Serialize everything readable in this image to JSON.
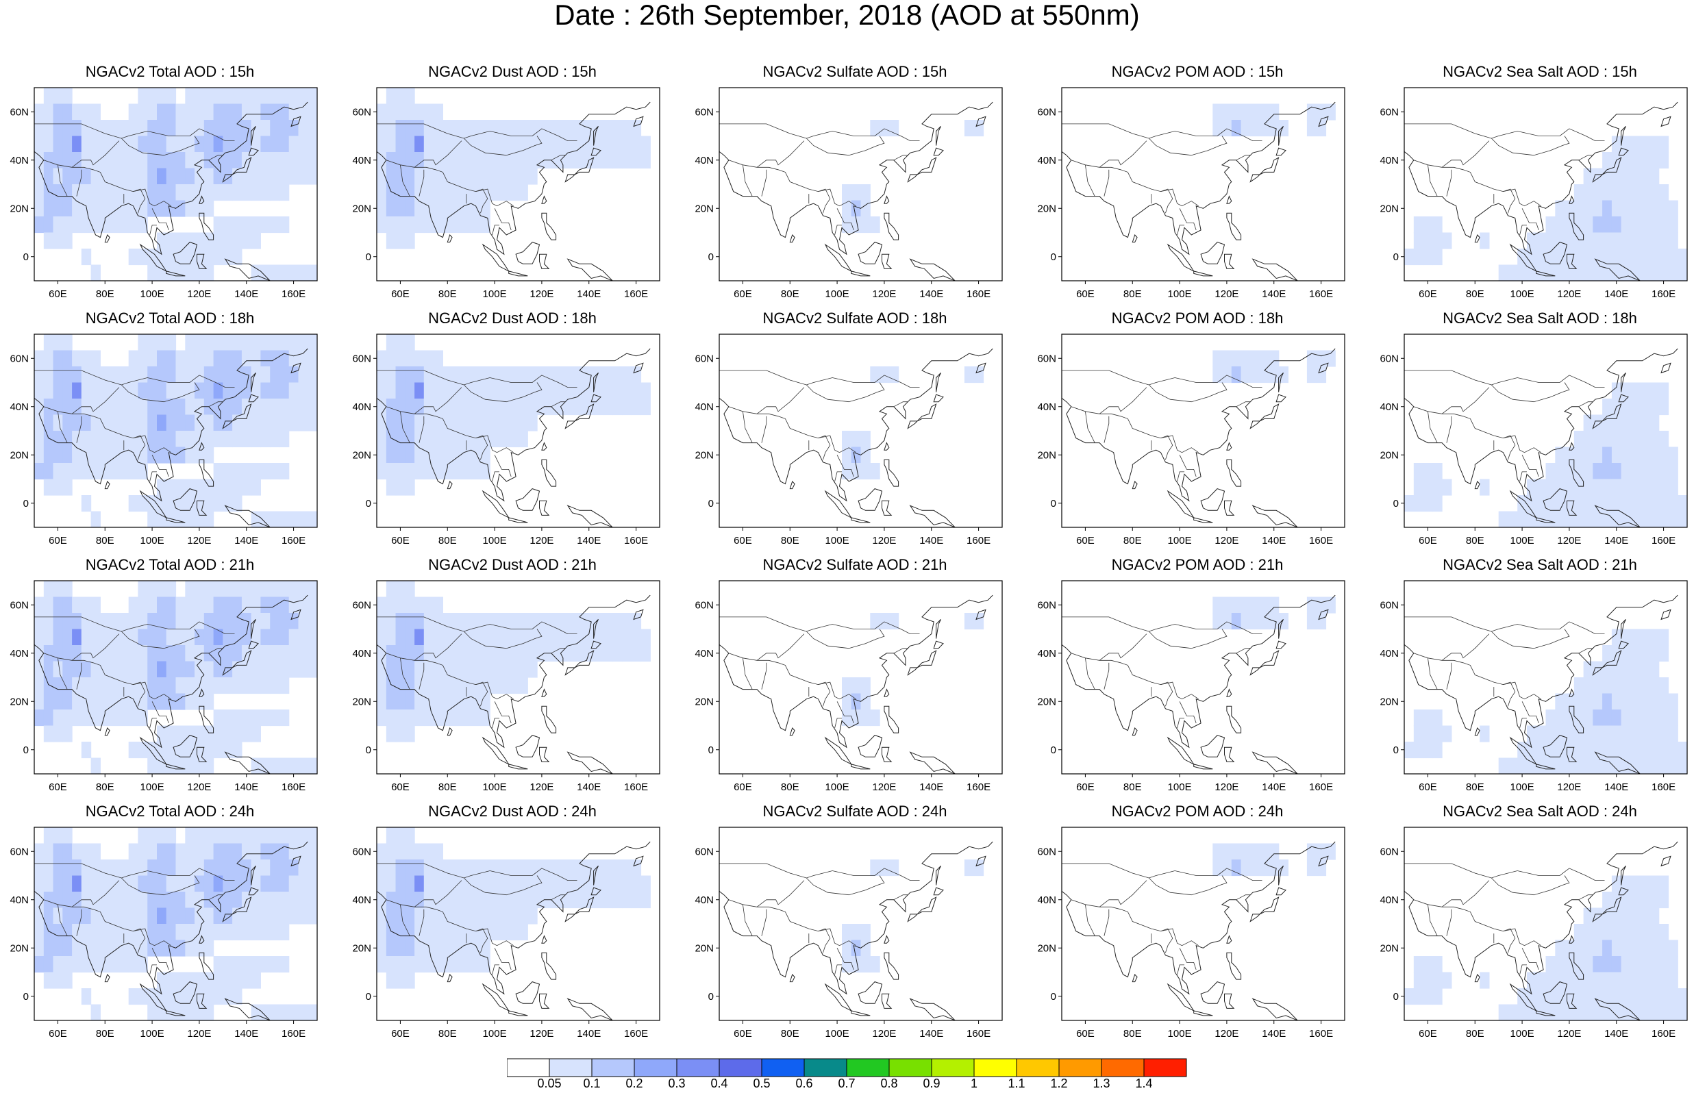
{
  "title": "Date : 26th September, 2018 (AOD at 550nm)",
  "axes": {
    "y_ticks": [
      "60N",
      "40N",
      "20N",
      "0"
    ],
    "x_ticks": [
      "60E",
      "80E",
      "100E",
      "120E",
      "140E",
      "160E"
    ]
  },
  "rows": [
    {
      "hour": "15h",
      "titles": [
        "NGACv2 Total AOD : 15h",
        "NGACv2 Dust AOD : 15h",
        "NGACv2 Sulfate AOD : 15h",
        "NGACv2 POM AOD : 15h",
        "NGACv2 Sea Salt AOD : 15h"
      ]
    },
    {
      "hour": "18h",
      "titles": [
        "NGACv2 Total AOD : 18h",
        "NGACv2 Dust AOD : 18h",
        "NGACv2 Sulfate AOD : 18h",
        "NGACv2 POM AOD : 18h",
        "NGACv2 Sea Salt AOD : 18h"
      ]
    },
    {
      "hour": "21h",
      "titles": [
        "NGACv2 Total AOD : 21h",
        "NGACv2 Dust AOD : 21h",
        "NGACv2 Sulfate AOD : 21h",
        "NGACv2 POM AOD : 21h",
        "NGACv2 Sea Salt AOD : 21h"
      ]
    },
    {
      "hour": "24h",
      "titles": [
        "NGACv2 Total AOD : 24h",
        "NGACv2 Dust AOD : 24h",
        "NGACv2 Sulfate AOD : 24h",
        "NGACv2 POM AOD : 24h",
        "NGACv2 Sea Salt  AOD : 24h"
      ]
    }
  ],
  "colorbar": {
    "labels": [
      "0.05",
      "0.1",
      "0.2",
      "0.3",
      "0.4",
      "0.5",
      "0.6",
      "0.7",
      "0.8",
      "0.9",
      "1",
      "1.1",
      "1.2",
      "1.3",
      "1.4"
    ],
    "colors": [
      "#ffffff",
      "#d7e3fd",
      "#b5c8fc",
      "#8fa8fa",
      "#7b8ff5",
      "#5d6bea",
      "#1060f2",
      "#088a8a",
      "#22c822",
      "#78e000",
      "#b4f000",
      "#ffff00",
      "#ffc800",
      "#ff9a00",
      "#ff6a00",
      "#ff1f00"
    ]
  },
  "fields": {
    "total": [
      "011100000001111011111111111111",
      "112211100011122111122211222111",
      "112221111111222111222221122211",
      "112241111112221112232221222111",
      "122221111111222211222211111111",
      "121222111111232221122111111111",
      "122211111111222111111111111000",
      "122211111111222211100000000000",
      "221111111111000000011111111000",
      "011100000000011111111111000000",
      "000001000011111111111100000000",
      "000000100000111111100001111111"
    ],
    "dust": [
      "011100000000000000000000000000",
      "111111100000000000000000000000",
      "112221111111111111111111111100",
      "112241111111111111111111111110",
      "122221111111111111111111111110",
      "122211111111111110000000000000",
      "122211111111111100000000000000",
      "122211111111000000000000000000",
      "111111111111000000000000000000",
      "011100000000000000000000000000",
      "000000000000000000000000000000",
      "000000000000000000000000000000"
    ],
    "sulfate": [
      "000000000000000000000000000000",
      "000000000000000000000000000000",
      "000000000000000011100000001100",
      "000000000000000000000000000000",
      "000000000000000000000000000000",
      "000000000000000000000000000000",
      "000000000000011100000000000000",
      "000000000000012100000000000000",
      "000000000000011110000000000000",
      "000000000000000000000000000000",
      "000000000000000000000000000000",
      "000000000000000000000000000000"
    ],
    "pom": [
      "000000000000000000000000000000",
      "000000000000000011111110001110",
      "000000000000000011211111001100",
      "000000000000000000000000000000",
      "000000000000000000000000000000",
      "000000000000000000000000000000",
      "000000000000000000000000000000",
      "000000000000000000000000000000",
      "000000000000000000000000000000",
      "000000000000000000000000000000",
      "000000000000000000000000000000",
      "000000000000000000000000000000"
    ],
    "seasalt": [
      "000000000000000000000000000000",
      "000000000000000000000000000000",
      "000000000000000000000000000000",
      "000000000000000000000011111100",
      "000000000000000000000111111100",
      "000000000000000000011111111000",
      "000000000000000000111111111100",
      "000000000000000011111211111110",
      "011100000000000111112221111110",
      "011110001000011111111111111110",
      "111100000000111111111111111111",
      "000000000011111111111111111111"
    ]
  }
}
